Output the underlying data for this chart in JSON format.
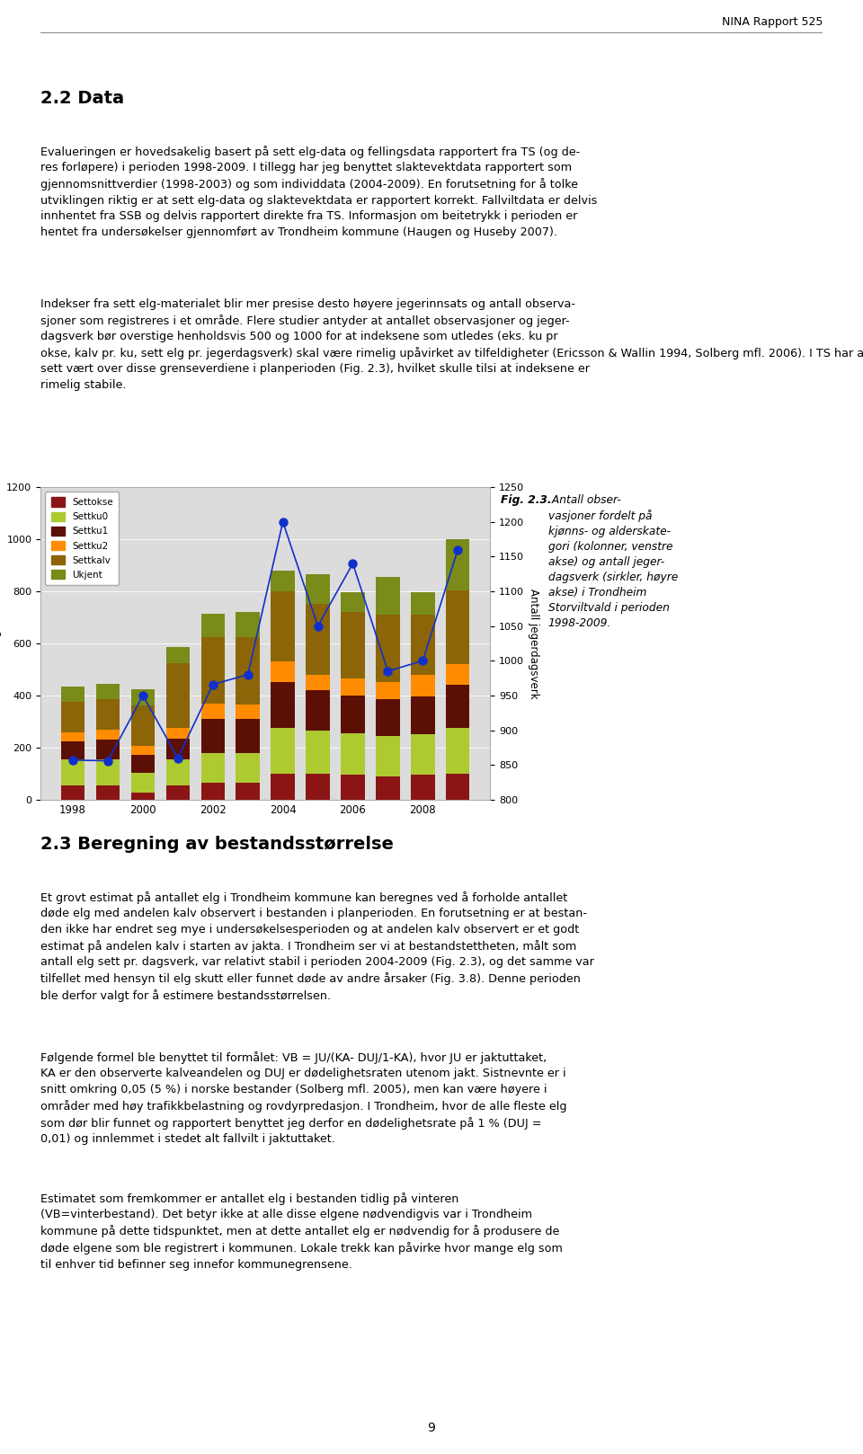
{
  "years": [
    1998,
    1999,
    2000,
    2001,
    2002,
    2003,
    2004,
    2005,
    2006,
    2007,
    2008,
    2009
  ],
  "settokse": [
    55,
    55,
    28,
    55,
    65,
    65,
    100,
    100,
    95,
    90,
    95,
    100
  ],
  "settku0": [
    100,
    100,
    75,
    100,
    115,
    115,
    175,
    165,
    160,
    155,
    155,
    175
  ],
  "settku1": [
    70,
    75,
    70,
    80,
    130,
    130,
    175,
    155,
    145,
    140,
    145,
    165
  ],
  "settku2": [
    35,
    40,
    35,
    40,
    60,
    55,
    80,
    60,
    65,
    65,
    85,
    80
  ],
  "settkalv": [
    115,
    115,
    155,
    250,
    255,
    260,
    270,
    270,
    255,
    260,
    230,
    285
  ],
  "ukjent": [
    60,
    60,
    60,
    60,
    90,
    95,
    80,
    115,
    75,
    145,
    85,
    195
  ],
  "line_values": [
    857,
    856,
    950,
    860,
    966,
    980,
    1200,
    1050,
    1140,
    985,
    1000,
    1160
  ],
  "bar_colors": {
    "settokse": "#8B1515",
    "settku0": "#ADCA30",
    "settku1": "#5C1005",
    "settku2": "#FF8C00",
    "settkalv": "#8B6508",
    "ukjent": "#7A8B1A"
  },
  "left_ylim": [
    0,
    1200
  ],
  "right_ylim": [
    800,
    1250
  ],
  "left_yticks": [
    0,
    200,
    400,
    600,
    800,
    1000,
    1200
  ],
  "right_yticks": [
    800,
    850,
    900,
    950,
    1000,
    1050,
    1100,
    1150,
    1200,
    1250
  ],
  "ylabel_left": "Antall elg sett",
  "ylabel_right": "Antall jegerdagsverk",
  "line_color": "#1030CC",
  "bg_color": "#DCDCDC",
  "legend_labels": [
    "Settokse",
    "Settku0",
    "Settku1",
    "Settku2",
    "Settkalv",
    "Ukjent"
  ],
  "header_line_color": "#888888",
  "header_text": "NINA Rapport 525",
  "sec22_title": "2.2 Data",
  "sec22_body1": "Evalueringen er hovedsakelig basert på sett elg-data og fellingsdata rapportert fra TS (og de-\nres forløpere) i perioden 1998-2009. I tillegg har jeg benyttet slaktevektdata rapportert som\ngjennomsnittverdier (1998-2003) og som individdata (2004-2009). En forutsetning for å tolke\nutviklingen riktig er at sett elg-data og slaktevektdata er rapportert korrekt. Fallviltdata er delvis\ninnhentet fra SSB og delvis rapportert direkte fra TS. Informasjon om beitetrykk i perioden er\nhentet fra undersøkelser gjennomført av Trondheim kommune (Haugen og Huseby 2007).",
  "sec22_body2": "Indekser fra sett elg-materialet blir mer presise desto høyere jegerinnsats og antall observa-\nsjoner som registreres i et område. Flere studier antyder at antallet observasjoner og jeger-\ndagsverk bør overstige henholdsvis 500 og 1000 for at indeksene som utledes (eks. ku pr\nokse, kalv pr. ku, sett elg pr. jegerdagsverk) skal være rimelig upåvirket av tilfeldigheter (Ericsson & Wallin 1994, Solberg mfl. 2006). I TS har antallet jegerdagsverk og observasjoner stort\nsett vært over disse grenseverdiene i planperioden (Fig. 2.3), hvilket skulle tilsi at indeksene er\nrimelig stabile.",
  "fig_caption_bold": "Fig. 2.3.",
  "fig_caption_italic": " Antall obser-\nvasjoner fordelt på\nkjønns- og alderskate-\ngori (kolonner, venstre\nakse) og antall jeger-\ndagsverk (sirkler, høyre\nakse) i Trondheim\nStorviltvald i perioden\n1998-2009.",
  "sec23_title": "2.3 Beregning av bestandsstørrelse",
  "sec23_body1": "Et grovt estimat på antallet elg i Trondheim kommune kan beregnes ved å forholde antallet\ndøde elg med andelen kalv observert i bestanden i planperioden. En forutsetning er at bestan-\nden ikke har endret seg mye i undersøkelsesperioden og at andelen kalv observert er et godt\nestimat på andelen kalv i starten av jakta. I Trondheim ser vi at bestandstettheten, målt som\nantall elg sett pr. dagsverk, var relativt stabil i perioden 2004-2009 (Fig. 2.3), og det samme var\ntilfellet med hensyn til elg skutt eller funnet døde av andre årsaker (Fig. 3.8). Denne perioden\nble derfor valgt for å estimere bestandsstørrelsen.",
  "sec23_body2": "Følgende formel ble benyttet til formålet: VB = JU/(KA- DUJ/1-KA), hvor JU er jaktuttaket,\nKA er den observerte kalveandelen og DUJ er dødelighetsraten utenom jakt. Sistnevnte er i\nsnitt omkring 0,05 (5 %) i norske bestander (Solberg mfl. 2005), men kan være høyere i\nområder med høy trafikkbelastning og rovdyrpredasjon. I Trondheim, hvor de alle fleste elg\nsom dør blir funnet og rapportert benyttet jeg derfor en dødelighetsrate på 1 % (DUJ =\n0,01) og innlemmet i stedet alt fallvilt i jaktuttaket.",
  "sec23_body3": "Estimatet som fremkommer er antallet elg i bestanden tidlig på vinteren\n(VB=vinterbestand). Det betyr ikke at alle disse elgene nødvendigvis var i Trondheim\nkommune på dette tidspunktet, men at dette antallet elg er nødvendig for å produsere de\ndøde elgene som ble registrert i kommunen. Lokale trekk kan påvirke hvor mange elg som\ntil enhver tid befinner seg innefor kommunegrensene.",
  "page_number": "9"
}
